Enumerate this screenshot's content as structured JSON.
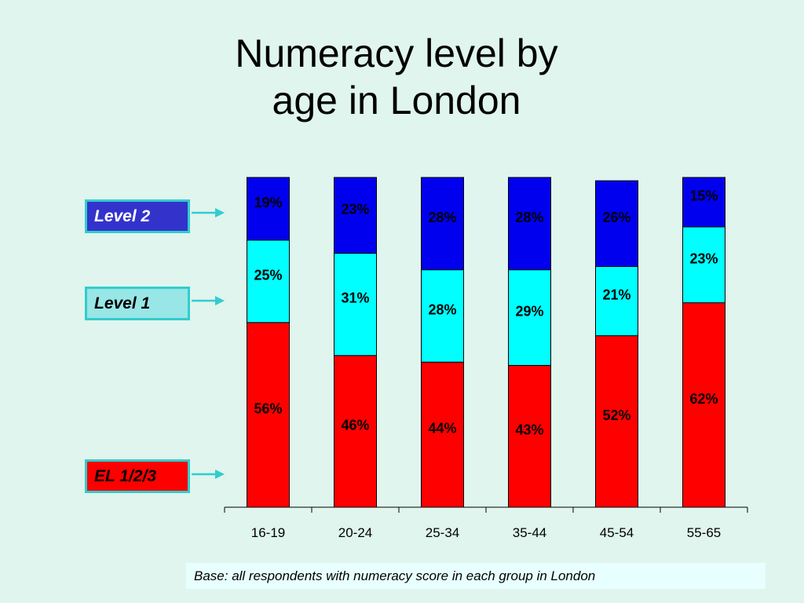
{
  "page": {
    "title_line1": "Numeracy level by",
    "title_line2": "age in London",
    "footnote": "Base: all respondents with numeracy score in each group in London"
  },
  "colors": {
    "background": "#dff5ee",
    "level2": "#0000ee",
    "level1": "#00ffff",
    "el": "#ff0000",
    "legend_border": "#33cccc",
    "arrow": "#33cccc"
  },
  "legend": [
    {
      "label": "Level 2",
      "fill": "#3333cc"
    },
    {
      "label": "Level 1",
      "fill": "#99e6e6"
    },
    {
      "label": "EL 1/2/3",
      "fill": "#ff0000"
    }
  ],
  "chart_data": {
    "type": "bar",
    "stacked": true,
    "categories": [
      "16-19",
      "20-24",
      "25-34",
      "35-44",
      "45-54",
      "55-65"
    ],
    "series": [
      {
        "name": "EL 1/2/3",
        "values": [
          56,
          46,
          44,
          43,
          52,
          62
        ]
      },
      {
        "name": "Level 1",
        "values": [
          25,
          31,
          28,
          29,
          21,
          23
        ]
      },
      {
        "name": "Level 2",
        "values": [
          19,
          23,
          28,
          28,
          26,
          15
        ]
      }
    ],
    "data_labels": [
      [
        "56%",
        "46%",
        "44%",
        "43%",
        "52%",
        "62%"
      ],
      [
        "25%",
        "31%",
        "28%",
        "29%",
        "21%",
        "23%"
      ],
      [
        "19%",
        "23%",
        "28%",
        "28%",
        "26%",
        "15%"
      ]
    ],
    "ylim": [
      0,
      100
    ],
    "grid": false,
    "legend_position": "left"
  }
}
